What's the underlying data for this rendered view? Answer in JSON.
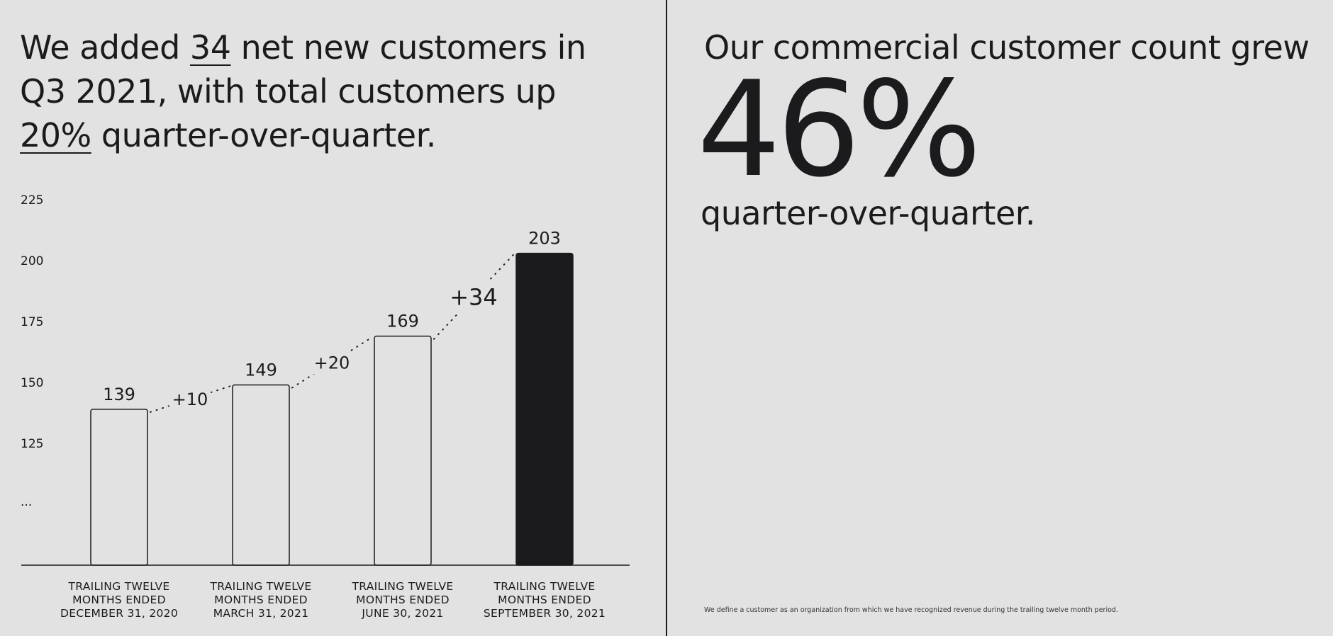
{
  "left": {
    "headline": {
      "p1": "We added ",
      "u1": "34",
      "p2": " net new customers in Q3 2021, with total customers up ",
      "u2": "20%",
      "p3": " quarter-over-quarter."
    }
  },
  "right": {
    "title": "Our commercial customer count grew",
    "big_stat": "46%",
    "subtitle": "quarter-over-quarter.",
    "footnote": "We define a customer as an organization from which we have recognized revenue during the trailing twelve month period."
  },
  "colors": {
    "background": "#e2e2e2",
    "ink": "#1b1b1d",
    "highlight_bar": "#1b1b1d"
  },
  "chart_data": {
    "type": "bar",
    "categories": [
      [
        "TRAILING TWELVE",
        "MONTHS ENDED",
        "DECEMBER 31, 2020"
      ],
      [
        "TRAILING TWELVE",
        "MONTHS ENDED",
        "MARCH 31, 2021"
      ],
      [
        "TRAILING TWELVE",
        "MONTHS ENDED",
        "JUNE 30, 2021"
      ],
      [
        "TRAILING TWELVE",
        "MONTHS ENDED",
        "SEPTEMBER 30, 2021"
      ]
    ],
    "values": [
      139,
      149,
      169,
      203
    ],
    "value_labels": [
      "139",
      "149",
      "169",
      "203"
    ],
    "highlight_index": 3,
    "deltas": [
      "+10",
      "+20",
      "+34"
    ],
    "yticks": [
      "225",
      "200",
      "175",
      "150",
      "125",
      "..."
    ],
    "ytick_values": [
      225,
      200,
      175,
      150,
      125
    ],
    "ylim": [
      75,
      225
    ],
    "axis_break": true,
    "grid": false,
    "legend": "none"
  }
}
